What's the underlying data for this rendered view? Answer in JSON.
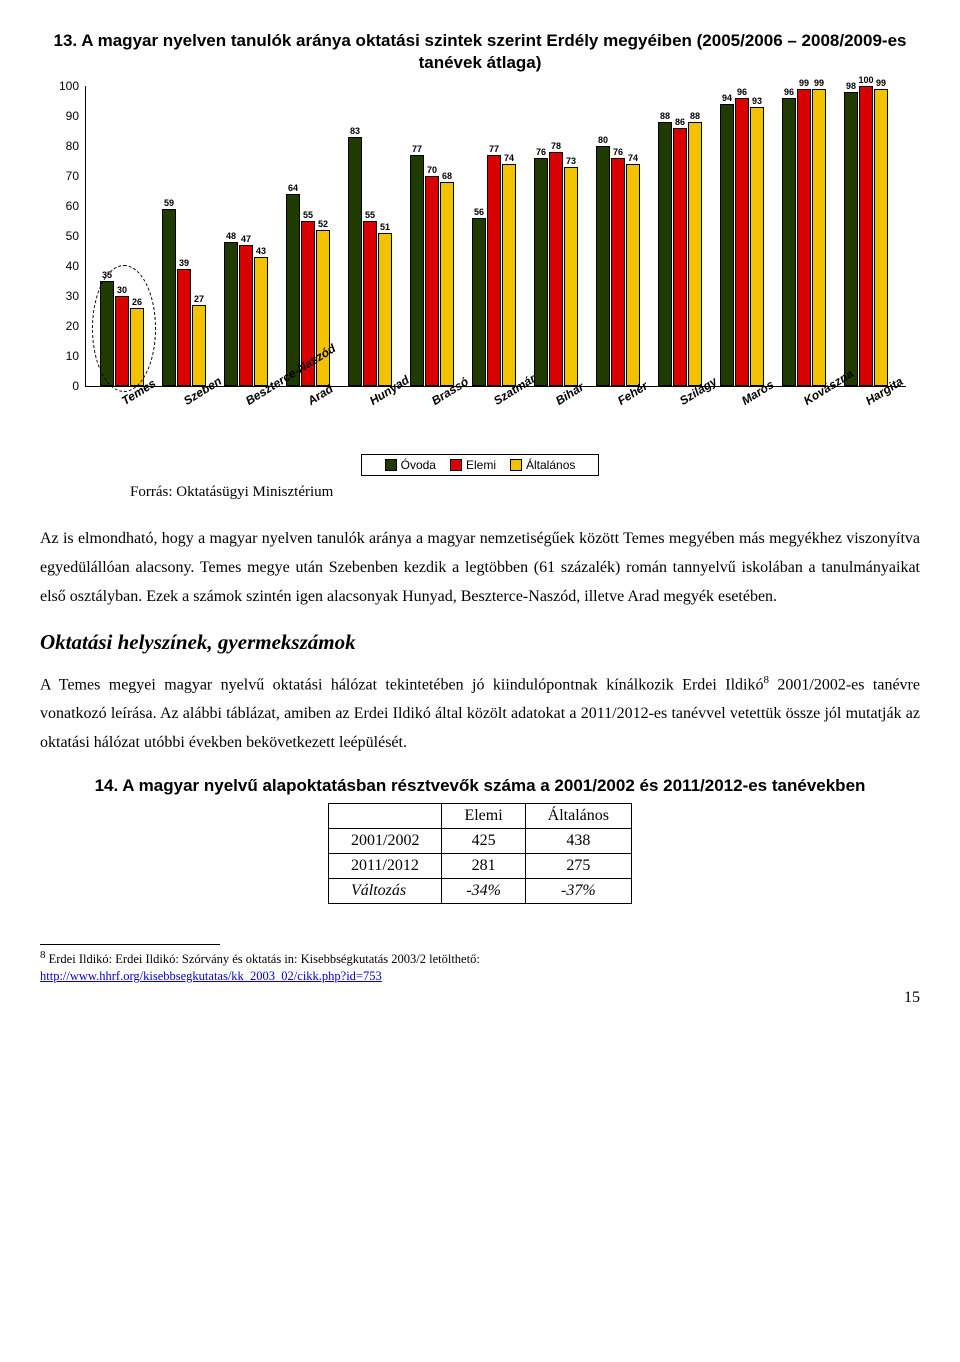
{
  "chart": {
    "title": "13. A magyar nyelven tanulók aránya oktatási szintek szerint Erdély megyéiben (2005/2006 – 2008/2009-es tanévek átlaga)",
    "ymax": 100,
    "ytick_step": 10,
    "series_colors": [
      "#1f3b00",
      "#d90000",
      "#f2c200"
    ],
    "series_labels": [
      "Óvoda",
      "Elemi",
      "Általános"
    ],
    "categories": [
      "Temes",
      "Szeben",
      "Beszterce-Naszód",
      "Arad",
      "Hunyad",
      "Brassó",
      "Szatmár",
      "Bihar",
      "Fehér",
      "Szilágy",
      "Maros",
      "Kovászna",
      "Hargita"
    ],
    "values": [
      [
        35,
        30,
        26
      ],
      [
        59,
        39,
        27
      ],
      [
        48,
        47,
        43
      ],
      [
        64,
        55,
        52
      ],
      [
        83,
        55,
        51
      ],
      [
        77,
        70,
        68
      ],
      [
        56,
        77,
        74
      ],
      [
        76,
        78,
        73
      ],
      [
        80,
        76,
        74
      ],
      [
        88,
        86,
        88
      ],
      [
        94,
        96,
        93
      ],
      [
        96,
        99,
        99
      ],
      [
        98,
        100,
        99
      ]
    ],
    "highlight_index": 0
  },
  "source": "Forrás: Oktatásügyi Minisztérium",
  "para1": "Az is elmondható, hogy a magyar nyelven tanulók aránya a magyar nemzetiségűek között Temes megyében más megyékhez viszonyítva egyedülállóan alacsony. Temes megye után Szebenben kezdik a legtöbben (61 százalék) román tannyelvű iskolában a tanulmányaikat első osztályban. Ezek a számok szintén igen alacsonyak Hunyad, Beszterce-Naszód, illetve Arad megyék esetében.",
  "section_heading": "Oktatási helyszínek, gyermekszámok",
  "para2_pre": "A Temes megyei magyar nyelvű oktatási hálózat tekintetében jó kiindulópontnak kínálkozik Erdei Ildikó",
  "para2_post": " 2001/2002-es tanévre vonatkozó leírása. Az alábbi táblázat, amiben az Erdei Ildikó által közölt adatokat a 2011/2012-es tanévvel vetettük össze jól mutatják az oktatási hálózat utóbbi években bekövetkezett leépülését.",
  "fn_marker": "8",
  "table": {
    "title": "14. A magyar nyelvű alapoktatásban résztvevők száma a 2001/2002 és 2011/2012-es tanévekben",
    "headers": [
      "",
      "Elemi",
      "Általános"
    ],
    "rows": [
      {
        "label": "2001/2002",
        "a": "425",
        "b": "438",
        "italic": false
      },
      {
        "label": "2011/2012",
        "a": "281",
        "b": "275",
        "italic": false
      },
      {
        "label": "Változás",
        "a": "-34%",
        "b": "-37%",
        "italic": true
      }
    ]
  },
  "footnote": {
    "num": "8",
    "text": " Erdei Ildikó: Erdei Ildikó: Szórvány és oktatás in: Kisebbségkutatás 2003/2  letölthető: ",
    "url": "http://www.hhrf.org/kisebbsegkutatas/kk_2003_02/cikk.php?id=753"
  },
  "pagenum": "15"
}
